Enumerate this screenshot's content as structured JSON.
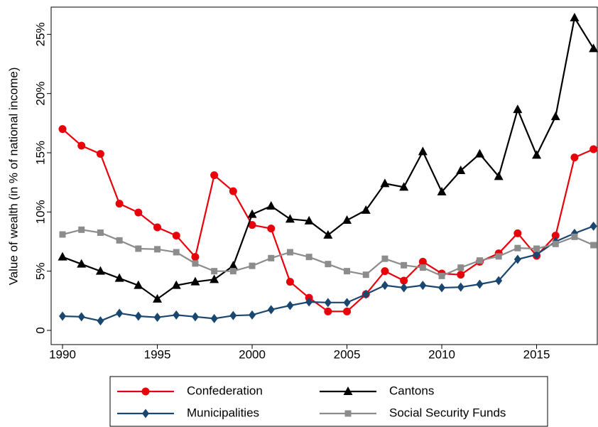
{
  "chart_data": {
    "type": "line",
    "y_label": "Value of wealth (in % of national income)",
    "x": [
      1990,
      1991,
      1992,
      1993,
      1994,
      1995,
      1996,
      1997,
      1998,
      1999,
      2000,
      2001,
      2002,
      2003,
      2004,
      2005,
      2006,
      2007,
      2008,
      2009,
      2010,
      2011,
      2012,
      2013,
      2014,
      2015,
      2016,
      2017,
      2018
    ],
    "xlim": [
      1989.4,
      2018.2
    ],
    "xticks": [
      1990,
      1995,
      2000,
      2005,
      2010,
      2015
    ],
    "ylim": [
      -1.2,
      27.3
    ],
    "yticks": [
      0,
      {
        "value": 5,
        "label": "5%"
      },
      {
        "value": 10,
        "label": "10%"
      },
      {
        "value": 15,
        "label": "15%"
      },
      {
        "value": 20,
        "label": "20%"
      },
      {
        "value": 25,
        "label": "25%"
      }
    ],
    "series": [
      {
        "name": "Confederation",
        "color": "#e8000b",
        "marker": "circle",
        "values": [
          17.0,
          15.6,
          14.9,
          10.7,
          9.95,
          8.7,
          8.0,
          6.2,
          13.1,
          11.75,
          8.9,
          8.6,
          4.1,
          2.75,
          1.6,
          1.6,
          3.05,
          5.0,
          4.2,
          5.8,
          4.8,
          4.7,
          5.8,
          6.5,
          8.2,
          6.3,
          8.0,
          14.6,
          15.3
        ]
      },
      {
        "name": "Cantons",
        "color": "#000000",
        "marker": "triangle",
        "values": [
          6.2,
          5.6,
          5.0,
          4.4,
          3.8,
          2.65,
          3.8,
          4.1,
          4.3,
          5.45,
          9.8,
          10.5,
          9.4,
          9.25,
          8.05,
          9.3,
          10.15,
          12.4,
          12.1,
          15.1,
          11.7,
          13.5,
          14.9,
          13.0,
          18.65,
          14.8,
          18.05,
          26.4,
          23.8
        ]
      },
      {
        "name": "Municipalities",
        "color": "#1a476f",
        "marker": "diamond",
        "values": [
          1.2,
          1.15,
          0.8,
          1.45,
          1.2,
          1.1,
          1.3,
          1.15,
          1.0,
          1.25,
          1.3,
          1.75,
          2.1,
          2.4,
          2.35,
          2.35,
          3.05,
          3.8,
          3.6,
          3.8,
          3.6,
          3.65,
          3.9,
          4.2,
          6.0,
          6.4,
          7.5,
          8.2,
          8.8
        ]
      },
      {
        "name": "Social Security Funds",
        "color": "#8c8c8c",
        "marker": "square",
        "values": [
          8.1,
          8.5,
          8.25,
          7.6,
          6.9,
          6.85,
          6.6,
          5.65,
          5.0,
          5.0,
          5.45,
          6.1,
          6.6,
          6.2,
          5.6,
          5.0,
          4.7,
          6.05,
          5.5,
          5.3,
          4.6,
          5.3,
          5.9,
          6.25,
          6.95,
          6.9,
          7.3,
          7.9,
          7.2
        ]
      }
    ]
  }
}
